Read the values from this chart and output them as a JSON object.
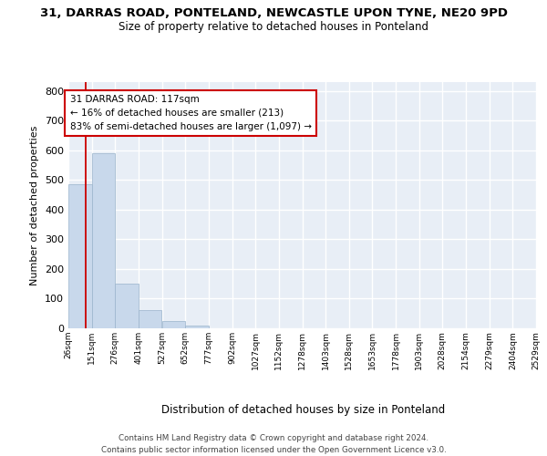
{
  "title_line1": "31, DARRAS ROAD, PONTELAND, NEWCASTLE UPON TYNE, NE20 9PD",
  "title_line2": "Size of property relative to detached houses in Ponteland",
  "xlabel": "Distribution of detached houses by size in Ponteland",
  "ylabel": "Number of detached properties",
  "bar_color": "#c8d8eb",
  "bar_edge_color": "#9ab4cc",
  "background_color": "#e8eef6",
  "grid_color": "#ffffff",
  "annotation_box_text": "31 DARRAS ROAD: 117sqm\n← 16% of detached houses are smaller (213)\n83% of semi-detached houses are larger (1,097) →",
  "annotation_box_edgecolor": "#cc0000",
  "vline_x": 117,
  "vline_color": "#cc0000",
  "bins": [
    26,
    151,
    276,
    401,
    527,
    652,
    777,
    902,
    1027,
    1152,
    1278,
    1403,
    1528,
    1653,
    1778,
    1903,
    2028,
    2154,
    2279,
    2404,
    2529
  ],
  "bin_labels": [
    "26sqm",
    "151sqm",
    "276sqm",
    "401sqm",
    "527sqm",
    "652sqm",
    "777sqm",
    "902sqm",
    "1027sqm",
    "1152sqm",
    "1278sqm",
    "1403sqm",
    "1528sqm",
    "1653sqm",
    "1778sqm",
    "1903sqm",
    "2028sqm",
    "2154sqm",
    "2279sqm",
    "2404sqm",
    "2529sqm"
  ],
  "bar_heights": [
    487,
    590,
    150,
    62,
    25,
    10,
    0,
    0,
    0,
    0,
    0,
    0,
    0,
    0,
    0,
    0,
    0,
    0,
    0,
    0
  ],
  "ylim": [
    0,
    830
  ],
  "yticks": [
    0,
    100,
    200,
    300,
    400,
    500,
    600,
    700,
    800
  ],
  "footer_line1": "Contains HM Land Registry data © Crown copyright and database right 2024.",
  "footer_line2": "Contains public sector information licensed under the Open Government Licence v3.0."
}
